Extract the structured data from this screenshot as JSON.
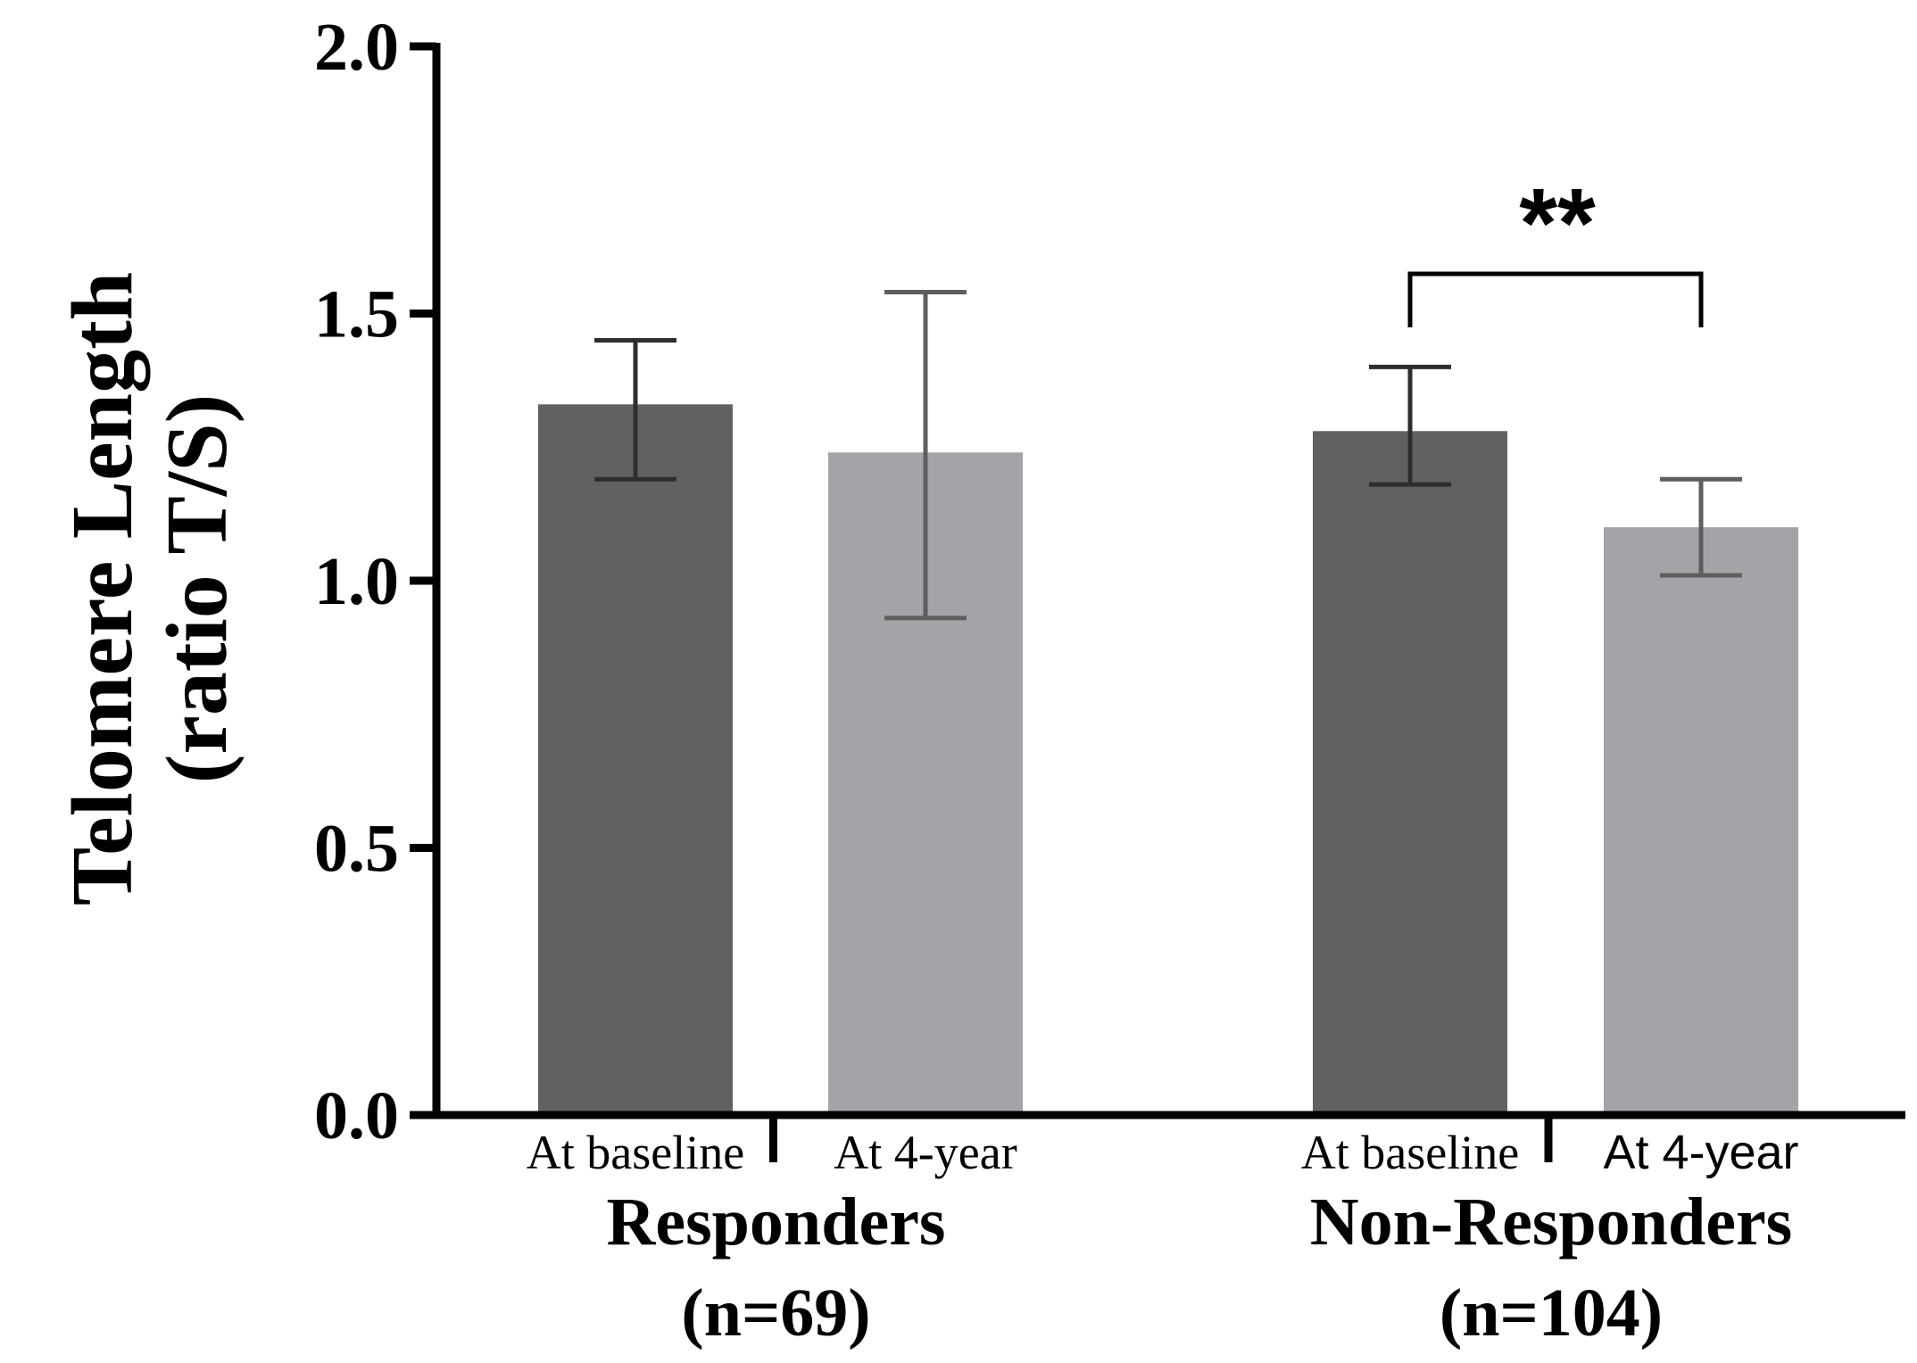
{
  "chart_data": {
    "type": "bar",
    "title": "",
    "ylabel_line1": "Telomere Length",
    "ylabel_line2": "(ratio T/S)",
    "xlabel": "",
    "ylim": [
      0,
      2.0
    ],
    "yticks": [
      "0.0",
      "0.5",
      "1.0",
      "1.5",
      "2.0"
    ],
    "grid": false,
    "legend": "none",
    "colors": {
      "baseline": "#616161",
      "four_year": "#a3a4a7",
      "axis": "#000000"
    },
    "groups": [
      {
        "name": "Responders",
        "n_label": "(n=69)",
        "bars": [
          {
            "label": "At baseline",
            "value": 1.33,
            "err_low": 1.19,
            "err_high": 1.45,
            "color_key": "baseline"
          },
          {
            "label": "At 4-year",
            "value": 1.24,
            "err_low": 0.93,
            "err_high": 1.54,
            "color_key": "four_year"
          }
        ]
      },
      {
        "name": "Non-Responders",
        "n_label": "(n=104)",
        "bars": [
          {
            "label": "At baseline",
            "value": 1.28,
            "err_low": 1.18,
            "err_high": 1.4,
            "color_key": "baseline"
          },
          {
            "label": "At 4-year",
            "value": 1.1,
            "err_low": 1.01,
            "err_high": 1.19,
            "color_key": "four_year"
          }
        ]
      }
    ],
    "annotations": [
      {
        "text": "**",
        "group": 1,
        "bracket_from_bar": 0,
        "bracket_to_bar": 1
      }
    ]
  }
}
